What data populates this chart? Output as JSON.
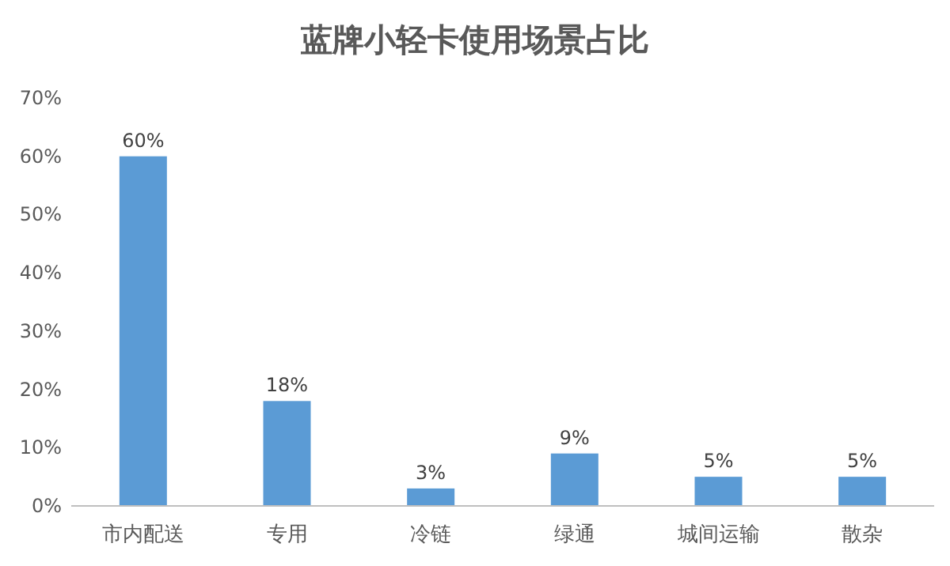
{
  "chart_data": {
    "type": "bar",
    "title": "蓝牌小轻卡使用场景占比",
    "categories": [
      "市内配送",
      "专用",
      "冷链",
      "绿通",
      "城间运输",
      "散杂"
    ],
    "values": [
      60,
      18,
      3,
      9,
      5,
      5
    ],
    "value_labels": [
      "60%",
      "18%",
      "3%",
      "9%",
      "5%",
      "5%"
    ],
    "color": "#5b9bd5",
    "ylim": [
      0,
      70
    ],
    "yticks": [
      {
        "value": 0,
        "label": "0%"
      },
      {
        "value": 10,
        "label": "10%"
      },
      {
        "value": 20,
        "label": "20%"
      },
      {
        "value": 30,
        "label": "30%"
      },
      {
        "value": 40,
        "label": "40%"
      },
      {
        "value": 50,
        "label": "50%"
      },
      {
        "value": 60,
        "label": "60%"
      },
      {
        "value": 70,
        "label": "70%"
      }
    ],
    "grid": false
  }
}
